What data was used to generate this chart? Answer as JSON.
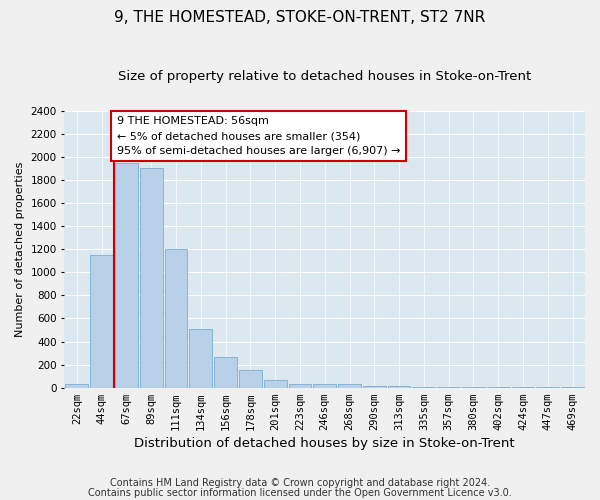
{
  "title": "9, THE HOMESTEAD, STOKE-ON-TRENT, ST2 7NR",
  "subtitle": "Size of property relative to detached houses in Stoke-on-Trent",
  "xlabel": "Distribution of detached houses by size in Stoke-on-Trent",
  "ylabel": "Number of detached properties",
  "categories": [
    "22sqm",
    "44sqm",
    "67sqm",
    "89sqm",
    "111sqm",
    "134sqm",
    "156sqm",
    "178sqm",
    "201sqm",
    "223sqm",
    "246sqm",
    "268sqm",
    "290sqm",
    "313sqm",
    "335sqm",
    "357sqm",
    "380sqm",
    "402sqm",
    "424sqm",
    "447sqm",
    "469sqm"
  ],
  "values": [
    30,
    1150,
    1950,
    1900,
    1200,
    510,
    265,
    155,
    65,
    35,
    35,
    30,
    15,
    15,
    5,
    5,
    5,
    5,
    2,
    2,
    2
  ],
  "bar_color": "#b8d0e8",
  "bar_edge_color": "#7aafd4",
  "vline_x_index": 1.5,
  "vline_color": "#cc0000",
  "annotation_text": "9 THE HOMESTEAD: 56sqm\n← 5% of detached houses are smaller (354)\n95% of semi-detached houses are larger (6,907) →",
  "annotation_box_color": "#ffffff",
  "annotation_box_edge": "#cc0000",
  "ylim": [
    0,
    2400
  ],
  "yticks": [
    0,
    200,
    400,
    600,
    800,
    1000,
    1200,
    1400,
    1600,
    1800,
    2000,
    2200,
    2400
  ],
  "background_color": "#dce8f0",
  "grid_color": "#ffffff",
  "footer1": "Contains HM Land Registry data © Crown copyright and database right 2024.",
  "footer2": "Contains public sector information licensed under the Open Government Licence v3.0.",
  "title_fontsize": 11,
  "subtitle_fontsize": 9.5,
  "xlabel_fontsize": 9.5,
  "ylabel_fontsize": 8,
  "tick_fontsize": 7.5,
  "footer_fontsize": 7
}
